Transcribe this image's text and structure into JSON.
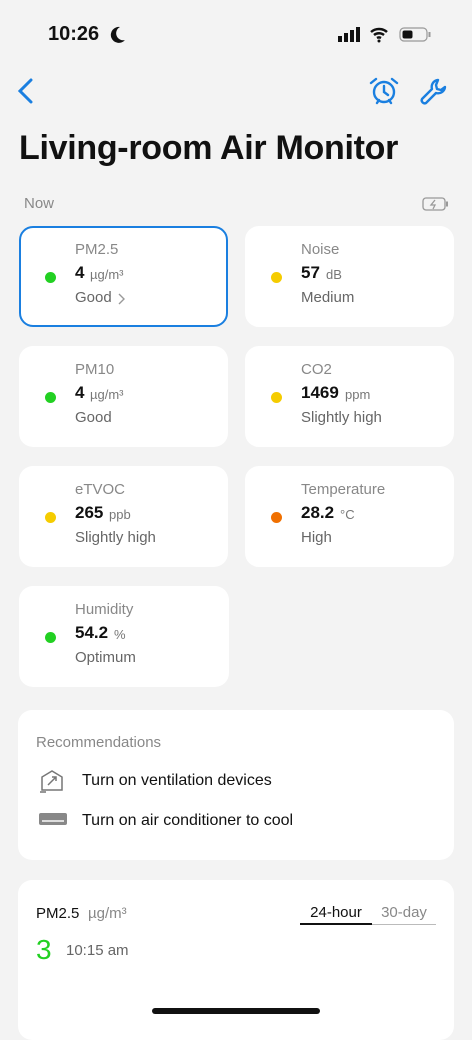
{
  "status_bar": {
    "time": "10:26"
  },
  "header": {
    "title": "Living-room Air Monitor"
  },
  "section_label": "Now",
  "metrics": [
    {
      "name": "PM2.5",
      "value": 4,
      "unit": "µg/m³",
      "status": "Good",
      "color": "#22d022",
      "selected": true
    },
    {
      "name": "Noise",
      "value": 57,
      "unit": "dB",
      "status": "Medium",
      "color": "#f5cc00"
    },
    {
      "name": "PM10",
      "value": 4,
      "unit": "µg/m³",
      "status": "Good",
      "color": "#22d022"
    },
    {
      "name": "CO2",
      "value": 1469,
      "unit": "ppm",
      "status": "Slightly high",
      "color": "#f5cc00"
    },
    {
      "name": "eTVOC",
      "value": 265,
      "unit": "ppb",
      "status": "Slightly high",
      "color": "#f5cc00"
    },
    {
      "name": "Temperature",
      "value": 28.2,
      "unit": "°C",
      "status": "High",
      "color": "#f07000"
    },
    {
      "name": "Humidity",
      "value": 54.2,
      "unit": "%",
      "status": "Optimum",
      "color": "#22d022"
    }
  ],
  "recommendations": {
    "title": "Recommendations",
    "items": [
      "Turn on ventilation devices",
      "Turn on air conditioner to cool"
    ]
  },
  "chart_panel": {
    "metric": "PM2.5",
    "unit": "µg/m³",
    "tabs": [
      "24-hour",
      "30-day"
    ],
    "current_value": 3,
    "time": "10:15 am"
  }
}
